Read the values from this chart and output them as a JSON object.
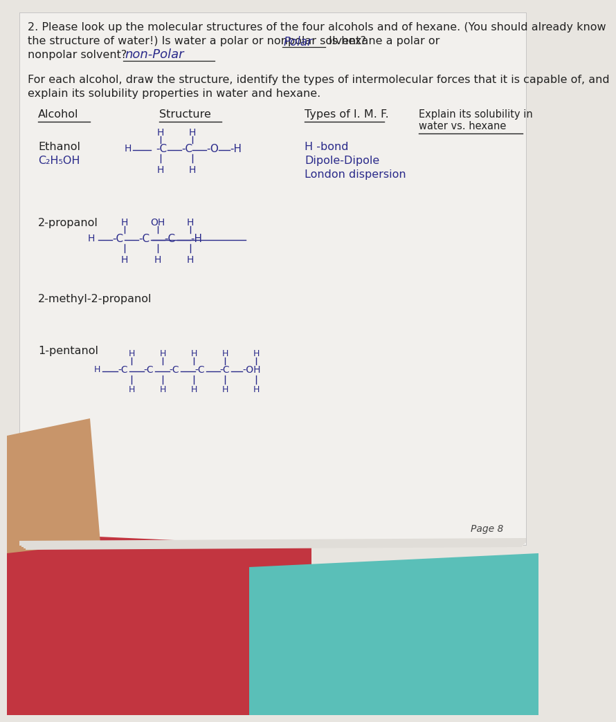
{
  "bg_paper": "#e8e5e0",
  "paper_white": "#f2f0ed",
  "red_fabric": "#c23540",
  "teal_surface": "#5abfb8",
  "skin_color": "#c8956a",
  "text_black": "#222222",
  "text_blue": "#2a2a8a",
  "page_number": "Page 8",
  "q2_line1": "2. Please look up the molecular structures of the four alcohols and of hexane. (You should already know",
  "q2_line2": "the structure of water!) Is water a polar or nonpolar solvent?",
  "q2_polar_answer": "Polar",
  "q2_line2b": "Is hexane a polar or",
  "q2_line3a": "nonpolar solvent?",
  "q2_nonpolar_answer": "non-Polar",
  "foreach_line1": "For each alcohol, draw the structure, identify the types of intermolecular forces that it is capable of, and",
  "foreach_line2": "explain its solubility properties in water and hexane.",
  "col_alcohol": "Alcohol",
  "col_structure": "Structure",
  "col_imf": "Types of I. M. F.",
  "col_explain1": "Explain its solubility in",
  "col_explain2": "water vs. hexane",
  "ethanol_name": "Ethanol",
  "ethanol_formula": "C₂H₅OH",
  "imf1": "H -bond",
  "imf2": "Dipole-Dipole",
  "imf3": "London dispersion",
  "propanol_name": "2-propanol",
  "methyl_propanol_name": "2-methyl-2-propanol",
  "pentanol_name": "1-pentanol"
}
